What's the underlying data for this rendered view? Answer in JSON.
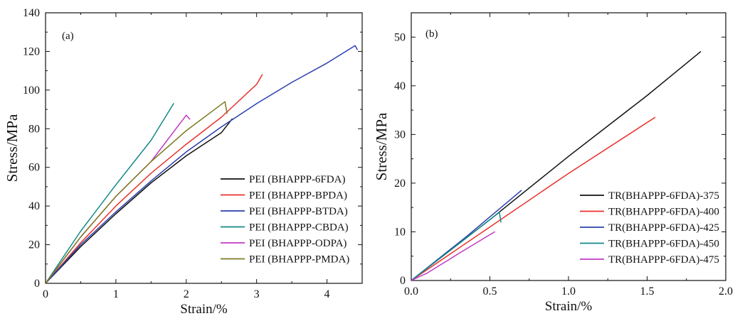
{
  "chart_data": [
    {
      "type": "line",
      "panel_label": "(a)",
      "xlabel": "Strain/%",
      "ylabel": "Stress/MPa",
      "xlim": [
        0,
        4.5
      ],
      "ylim": [
        0,
        140
      ],
      "xticks": [
        0,
        1,
        2,
        3,
        4
      ],
      "xtick_labels": [
        "0",
        "1",
        "2",
        "3",
        "4"
      ],
      "yticks": [
        0,
        20,
        40,
        60,
        80,
        100,
        120,
        140
      ],
      "ytick_labels": [
        "0",
        "20",
        "40",
        "60",
        "80",
        "100",
        "120",
        "140"
      ],
      "grid": false,
      "legend_position": "bottom-right",
      "series": [
        {
          "name": "PEI (BHAPPP-6FDA)",
          "color": "#111111",
          "x": [
            0,
            0.5,
            1.0,
            1.5,
            2.0,
            2.5,
            2.65
          ],
          "y": [
            0,
            19,
            36,
            52,
            66,
            78,
            85
          ]
        },
        {
          "name": "PEI (BHAPPP-BPDA)",
          "color": "#e8312a",
          "x": [
            0,
            0.5,
            1.0,
            1.5,
            2.0,
            2.5,
            3.0,
            3.08
          ],
          "y": [
            0,
            21,
            40,
            57,
            72,
            86,
            103,
            108
          ]
        },
        {
          "name": "PEI (BHAPPP-BTDA)",
          "color": "#2b3fae",
          "x": [
            0,
            0.5,
            1.0,
            1.5,
            2.0,
            2.5,
            3.0,
            3.5,
            4.0,
            4.4,
            4.43
          ],
          "y": [
            0,
            20,
            37,
            53,
            68,
            81,
            93,
            104,
            114,
            123,
            121
          ]
        },
        {
          "name": "PEI (BHAPPP-CBDA)",
          "color": "#138a86",
          "x": [
            0,
            0.5,
            1.0,
            1.5,
            1.82
          ],
          "y": [
            0,
            27,
            51,
            74,
            93
          ]
        },
        {
          "name": "PEI (BHAPPP-ODPA)",
          "color": "#c23ac4",
          "x": [
            0,
            0.5,
            1.0,
            1.5,
            2.0,
            2.05
          ],
          "y": [
            0,
            24,
            45,
            63,
            87,
            85
          ]
        },
        {
          "name": "PEI (BHAPPP-PMDA)",
          "color": "#7d7a1f",
          "x": [
            0,
            0.5,
            1.0,
            1.5,
            2.0,
            2.55,
            2.58
          ],
          "y": [
            0,
            24,
            45,
            63,
            79,
            94,
            88
          ]
        }
      ]
    },
    {
      "type": "line",
      "panel_label": "(b)",
      "xlabel": "Strain/%",
      "ylabel": "Stress/MPa",
      "xlim": [
        0,
        2.0
      ],
      "ylim": [
        0,
        55
      ],
      "xticks": [
        0,
        0.5,
        1.0,
        1.5,
        2.0
      ],
      "xtick_labels": [
        "0.0",
        "0.5",
        "1.0",
        "1.5",
        "2.0"
      ],
      "yticks": [
        0,
        10,
        20,
        30,
        40,
        50
      ],
      "ytick_labels": [
        "0",
        "10",
        "20",
        "30",
        "40",
        "50"
      ],
      "grid": false,
      "legend_position": "bottom-right",
      "series": [
        {
          "name": "TR(BHAPPP-6FDA)-375",
          "color": "#111111",
          "x": [
            0,
            0.5,
            1.0,
            1.5,
            1.84
          ],
          "y": [
            0,
            12.5,
            25.5,
            38,
            47
          ]
        },
        {
          "name": "TR(BHAPPP-6FDA)-400",
          "color": "#e8312a",
          "x": [
            0,
            0.5,
            1.0,
            1.55
          ],
          "y": [
            0,
            11,
            22,
            33.5
          ]
        },
        {
          "name": "TR(BHAPPP-6FDA)-425",
          "color": "#2b3fae",
          "x": [
            0,
            0.35,
            0.7
          ],
          "y": [
            0,
            9,
            18.5
          ]
        },
        {
          "name": "TR(BHAPPP-6FDA)-450",
          "color": "#138a86",
          "x": [
            0,
            0.3,
            0.56,
            0.57
          ],
          "y": [
            0,
            7.5,
            14,
            12
          ]
        },
        {
          "name": "TR(BHAPPP-6FDA)-475",
          "color": "#c23ac4",
          "x": [
            0,
            0.1,
            0.3,
            0.53
          ],
          "y": [
            0,
            1.5,
            5.5,
            10
          ]
        }
      ]
    }
  ]
}
